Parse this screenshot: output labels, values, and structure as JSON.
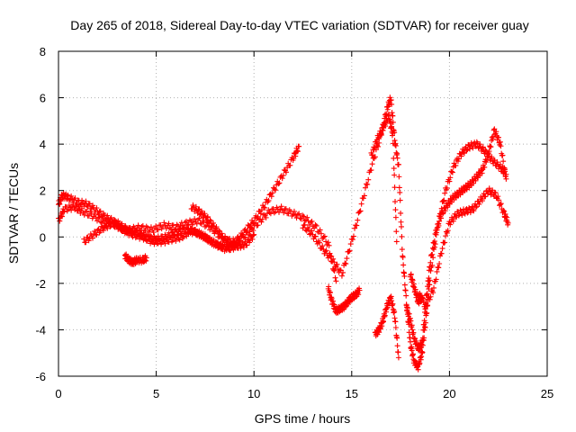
{
  "chart_data": {
    "type": "scatter",
    "title": "Day 265 of 2018, Sidereal Day-to-day VTEC variation (SDTVAR) for receiver guay",
    "xlabel": "GPS time / hours",
    "ylabel": "SDTVAR / TECUs",
    "xlim": [
      0,
      25
    ],
    "ylim": [
      -6,
      8
    ],
    "xticks": [
      "0",
      "5",
      "10",
      "15",
      "20",
      "25"
    ],
    "yticks": [
      "-6",
      "-4",
      "-2",
      "0",
      "2",
      "4",
      "6",
      "8"
    ],
    "grid": true,
    "marker": "plus",
    "color": "#ff0000",
    "series": [
      {
        "x": [
          0.0,
          0.2,
          0.5,
          1.0,
          1.5,
          2.0,
          2.5,
          3.0,
          3.5,
          4.0,
          4.5,
          5.0,
          5.5,
          6.0,
          6.5,
          7.0,
          7.5,
          8.0,
          8.5,
          9.0,
          9.5,
          10.0,
          10.5,
          11.0,
          11.5,
          12.0,
          12.3
        ],
        "y": [
          1.4,
          1.8,
          1.7,
          1.5,
          1.4,
          1.1,
          0.8,
          0.6,
          0.3,
          0.2,
          0.0,
          -0.1,
          0.0,
          0.2,
          0.3,
          0.2,
          0.0,
          -0.3,
          -0.5,
          -0.3,
          0.2,
          0.7,
          1.3,
          2.0,
          2.7,
          3.4,
          3.9
        ]
      },
      {
        "x": [
          0.0,
          0.3,
          0.8,
          1.2,
          1.8,
          2.4,
          3.0,
          3.6,
          4.2,
          4.8,
          5.4,
          6.0,
          6.6,
          7.2,
          7.8,
          8.4,
          9.0,
          9.6,
          10.2,
          10.8,
          11.4,
          12.0,
          12.6,
          13.2,
          13.8,
          14.2
        ],
        "y": [
          0.7,
          1.2,
          1.3,
          1.1,
          0.9,
          0.6,
          0.5,
          0.3,
          0.4,
          0.3,
          0.5,
          0.4,
          0.6,
          0.7,
          0.4,
          -0.1,
          -0.2,
          0.1,
          0.6,
          1.1,
          1.2,
          1.0,
          0.8,
          0.4,
          -0.3,
          -1.9
        ]
      },
      {
        "x": [
          1.3,
          1.8,
          2.3,
          2.8,
          3.3,
          3.8,
          4.3,
          4.8,
          5.3,
          5.8,
          6.3,
          6.8,
          7.3,
          7.8,
          8.3,
          8.8,
          9.3
        ],
        "y": [
          -0.2,
          0.1,
          0.4,
          0.6,
          0.3,
          0.1,
          0.0,
          -0.2,
          -0.2,
          -0.1,
          0.0,
          0.3,
          0.1,
          -0.2,
          -0.4,
          -0.5,
          -0.3
        ]
      },
      {
        "x": [
          3.4,
          3.6,
          3.8,
          4.0,
          4.3,
          4.5
        ],
        "y": [
          -0.8,
          -1.0,
          -1.1,
          -1.0,
          -1.0,
          -0.9
        ]
      },
      {
        "x": [
          6.8,
          7.2,
          7.6,
          8.0,
          8.4,
          8.8,
          9.2,
          9.6,
          10.0
        ],
        "y": [
          1.3,
          1.1,
          0.8,
          0.4,
          0.0,
          -0.3,
          -0.4,
          -0.3,
          0.1
        ]
      },
      {
        "x": [
          12.5,
          13.0,
          13.5,
          14.0,
          14.5,
          15.0,
          15.5,
          16.0,
          16.5,
          16.8,
          17.0,
          17.2,
          17.4,
          17.6,
          17.8,
          18.0,
          18.2,
          18.4,
          18.6,
          18.8,
          19.0,
          19.4,
          19.8,
          20.2,
          20.6,
          21.0,
          21.4,
          21.8,
          22.2,
          22.6,
          22.9
        ],
        "y": [
          0.5,
          0.1,
          -0.5,
          -1.0,
          -1.6,
          -0.2,
          1.4,
          3.0,
          4.4,
          5.5,
          6.0,
          4.2,
          3.0,
          -0.8,
          -2.8,
          -4.6,
          -5.4,
          -5.6,
          -5.0,
          -3.5,
          -1.8,
          0.5,
          2.0,
          3.0,
          3.6,
          3.9,
          4.0,
          3.7,
          3.3,
          3.0,
          2.7
        ]
      },
      {
        "x": [
          13.8,
          14.0,
          14.2,
          14.4,
          14.6,
          14.8,
          15.0,
          15.2,
          15.4
        ],
        "y": [
          -2.2,
          -2.8,
          -3.2,
          -3.1,
          -3.0,
          -2.8,
          -2.6,
          -2.5,
          -2.3
        ]
      },
      {
        "x": [
          16.2,
          16.4,
          16.6,
          16.8,
          17.0,
          17.2,
          17.4
        ],
        "y": [
          -4.2,
          -4.0,
          -3.6,
          -3.0,
          -2.6,
          -3.4,
          -5.2
        ]
      },
      {
        "x": [
          16.0,
          16.3,
          16.6,
          16.9,
          17.1,
          17.3
        ],
        "y": [
          3.5,
          4.2,
          4.7,
          5.2,
          4.4,
          -0.2
        ]
      },
      {
        "x": [
          17.8,
          18.0,
          18.2,
          18.4,
          18.6,
          18.8,
          19.0,
          19.3,
          19.6,
          19.9,
          20.2,
          20.5,
          20.8,
          21.1,
          21.4,
          21.7,
          22.0,
          22.3,
          22.6,
          22.9
        ],
        "y": [
          -3.0,
          -3.6,
          -4.4,
          -4.8,
          -4.6,
          -2.8,
          -1.2,
          0.2,
          1.0,
          1.4,
          1.7,
          1.9,
          2.1,
          2.3,
          2.6,
          2.9,
          3.6,
          4.6,
          4.0,
          2.5
        ]
      },
      {
        "x": [
          18.4,
          18.8,
          19.2,
          19.6,
          20.0,
          20.4,
          20.8,
          21.2,
          21.6,
          22.0,
          22.4,
          22.8,
          23.0
        ],
        "y": [
          -2.4,
          -3.0,
          -2.2,
          -0.6,
          0.6,
          1.0,
          1.1,
          1.2,
          1.6,
          2.0,
          1.8,
          1.0,
          0.6
        ]
      },
      {
        "x": [
          18.0,
          18.2,
          18.4,
          18.6
        ],
        "y": [
          -1.6,
          -2.2,
          -2.8,
          -2.6
        ]
      }
    ]
  }
}
